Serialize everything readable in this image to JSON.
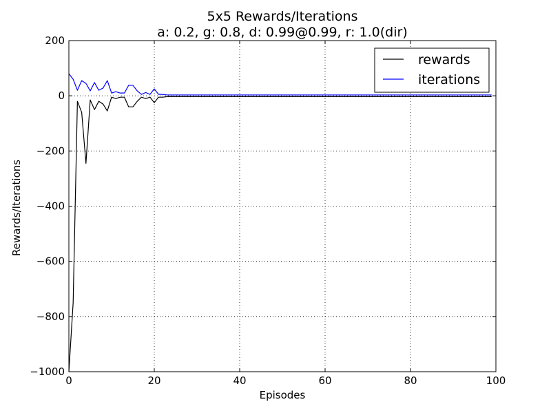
{
  "chart_data": {
    "type": "line",
    "title": "5x5 Rewards/Iterations",
    "subtitle": "a: 0.2, g: 0.8, d: 0.99@0.99, r: 1.0(dir)",
    "xlabel": "Episodes",
    "ylabel": "Rewards/Iterations",
    "xlim": [
      0,
      100
    ],
    "ylim": [
      -1000,
      200
    ],
    "xticks": [
      0,
      20,
      40,
      60,
      80,
      100
    ],
    "yticks": [
      -1000,
      -800,
      -600,
      -400,
      -200,
      0,
      200
    ],
    "xtick_labels": [
      "0",
      "20",
      "40",
      "60",
      "80",
      "100"
    ],
    "ytick_labels": [
      "−1000",
      "−800",
      "−600",
      "−400",
      "−200",
      "0",
      "200"
    ],
    "grid": true,
    "legend": "top-right",
    "x": [
      0,
      1,
      2,
      3,
      4,
      5,
      6,
      7,
      8,
      9,
      10,
      11,
      12,
      13,
      14,
      15,
      16,
      17,
      18,
      19,
      20,
      21,
      22,
      23,
      24,
      25,
      26,
      27,
      28,
      29,
      30,
      31,
      32,
      33,
      34,
      35,
      36,
      37,
      38,
      39,
      40,
      41,
      42,
      43,
      44,
      45,
      46,
      47,
      48,
      49,
      50,
      51,
      52,
      53,
      54,
      55,
      56,
      57,
      58,
      59,
      60,
      61,
      62,
      63,
      64,
      65,
      66,
      67,
      68,
      69,
      70,
      71,
      72,
      73,
      74,
      75,
      76,
      77,
      78,
      79,
      80,
      81,
      82,
      83,
      84,
      85,
      86,
      87,
      88,
      89,
      90,
      91,
      92,
      93,
      94,
      95,
      96,
      97,
      98,
      99
    ],
    "series": [
      {
        "name": "rewards",
        "color": "#000000",
        "values": [
          -1000,
          -750,
          -20,
          -60,
          -245,
          -15,
          -50,
          -20,
          -30,
          -55,
          -5,
          -10,
          -5,
          -5,
          -40,
          -40,
          -20,
          -5,
          -10,
          -5,
          -25,
          -5,
          -5,
          -3,
          -3,
          -3,
          -3,
          -3,
          -3,
          -3,
          -3,
          -3,
          -3,
          -3,
          -3,
          -3,
          -3,
          -3,
          -3,
          -3,
          -3,
          -3,
          -3,
          -3,
          -3,
          -3,
          -3,
          -3,
          -3,
          -3,
          -3,
          -3,
          -3,
          -3,
          -3,
          -3,
          -3,
          -3,
          -3,
          -3,
          -3,
          -3,
          -3,
          -3,
          -3,
          -3,
          -3,
          -3,
          -3,
          -3,
          -3,
          -3,
          -3,
          -3,
          -3,
          -3,
          -3,
          -3,
          -3,
          -3,
          -3,
          -3,
          -3,
          -3,
          -3,
          -3,
          -3,
          -3,
          -3,
          -3,
          -3,
          -3,
          -3,
          -3,
          -3,
          -3,
          -3,
          -3,
          -3,
          -3
        ]
      },
      {
        "name": "iterations",
        "color": "#0000ff",
        "values": [
          80,
          60,
          20,
          55,
          45,
          18,
          48,
          20,
          28,
          55,
          10,
          15,
          10,
          10,
          38,
          38,
          18,
          5,
          12,
          5,
          25,
          5,
          5,
          3,
          3,
          3,
          3,
          3,
          3,
          3,
          3,
          3,
          3,
          3,
          3,
          3,
          3,
          3,
          3,
          3,
          3,
          3,
          3,
          3,
          3,
          3,
          3,
          3,
          3,
          3,
          3,
          3,
          3,
          3,
          3,
          3,
          3,
          3,
          3,
          3,
          3,
          3,
          3,
          3,
          3,
          3,
          3,
          3,
          3,
          3,
          3,
          3,
          3,
          3,
          3,
          3,
          3,
          3,
          3,
          3,
          3,
          3,
          3,
          3,
          3,
          3,
          3,
          3,
          3,
          3,
          3,
          3,
          3,
          3,
          3,
          3,
          3,
          3,
          3,
          3
        ]
      }
    ]
  }
}
